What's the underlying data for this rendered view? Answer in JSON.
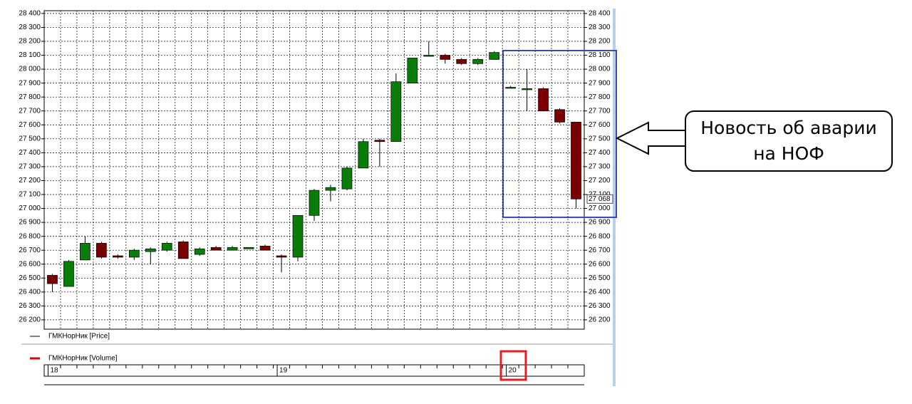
{
  "chart_data": {
    "type": "candlestick",
    "categories": [
      "18",
      null,
      null,
      null,
      null,
      null,
      null,
      null,
      null,
      null,
      null,
      null,
      null,
      null,
      "19",
      null,
      null,
      null,
      null,
      null,
      null,
      null,
      null,
      null,
      null,
      null,
      null,
      null,
      "20",
      null,
      null,
      null,
      null
    ],
    "open": [
      26520,
      26440,
      26630,
      26750,
      26660,
      26650,
      26690,
      26700,
      26760,
      26670,
      26720,
      26700,
      26710,
      26730,
      26660,
      26650,
      26950,
      27130,
      27140,
      27290,
      27490,
      27480,
      27900,
      28100,
      28100,
      28070,
      28040,
      28070,
      27870,
      27860,
      27860,
      27710,
      27620
    ],
    "high": [
      26530,
      26630,
      26800,
      26760,
      26670,
      26710,
      26720,
      26760,
      26770,
      26720,
      26730,
      26730,
      26720,
      26740,
      26670,
      26950,
      27140,
      27170,
      27300,
      27500,
      27500,
      27970,
      28080,
      28200,
      28110,
      28080,
      28080,
      28130,
      27880,
      28000,
      27870,
      27720,
      27620
    ],
    "low": [
      26400,
      26440,
      26630,
      26640,
      26640,
      26630,
      26600,
      26690,
      26640,
      26660,
      26700,
      26700,
      26710,
      26700,
      26540,
      26620,
      26910,
      27050,
      27130,
      27290,
      27300,
      27480,
      27900,
      28090,
      28040,
      28030,
      28030,
      28070,
      27870,
      27700,
      27700,
      27610,
      27000
    ],
    "close": [
      26460,
      26620,
      26750,
      26650,
      26650,
      26700,
      26710,
      26750,
      26640,
      26710,
      26700,
      26720,
      26720,
      26700,
      26650,
      26950,
      27130,
      27150,
      27290,
      27480,
      27480,
      27910,
      28080,
      28100,
      28070,
      28040,
      28070,
      28120,
      27870,
      27860,
      27700,
      27620,
      27068
    ],
    "up_color": "#087d08",
    "down_color": "#7a0000",
    "ylim": [
      26133,
      28420
    ],
    "yticks": [
      {
        "value": 26200,
        "label": "26 200"
      },
      {
        "value": 26300,
        "label": "26 300"
      },
      {
        "value": 26400,
        "label": "26 400"
      },
      {
        "value": 26500,
        "label": "26 500"
      },
      {
        "value": 26600,
        "label": "26 600"
      },
      {
        "value": 26700,
        "label": "26 700"
      },
      {
        "value": 26800,
        "label": "26 800"
      },
      {
        "value": 26900,
        "label": "26 900"
      },
      {
        "value": 27000,
        "label": "27 000"
      },
      {
        "value": 27100,
        "label": "27 100"
      },
      {
        "value": 27200,
        "label": "27 200"
      },
      {
        "value": 27300,
        "label": "27 300"
      },
      {
        "value": 27400,
        "label": "27 400"
      },
      {
        "value": 27500,
        "label": "27 500"
      },
      {
        "value": 27600,
        "label": "27 600"
      },
      {
        "value": 27700,
        "label": "27 700"
      },
      {
        "value": 27800,
        "label": "27 800"
      },
      {
        "value": 27900,
        "label": "27 900"
      },
      {
        "value": 28000,
        "label": "28 000"
      },
      {
        "value": 28100,
        "label": "28 100"
      },
      {
        "value": 28200,
        "label": "28 200"
      },
      {
        "value": 28300,
        "label": "28 300"
      },
      {
        "value": 28400,
        "label": "28 400"
      }
    ],
    "last_price": {
      "value": 27068,
      "label": "27 068"
    },
    "grid": true,
    "legend": [
      {
        "name": "ГМКНорНик [Price]",
        "color": "#000000"
      },
      {
        "name": "ГМКНорНик [Volume]",
        "color": "#e00000"
      }
    ],
    "annotation": "Новость об аварии на НОФ"
  }
}
